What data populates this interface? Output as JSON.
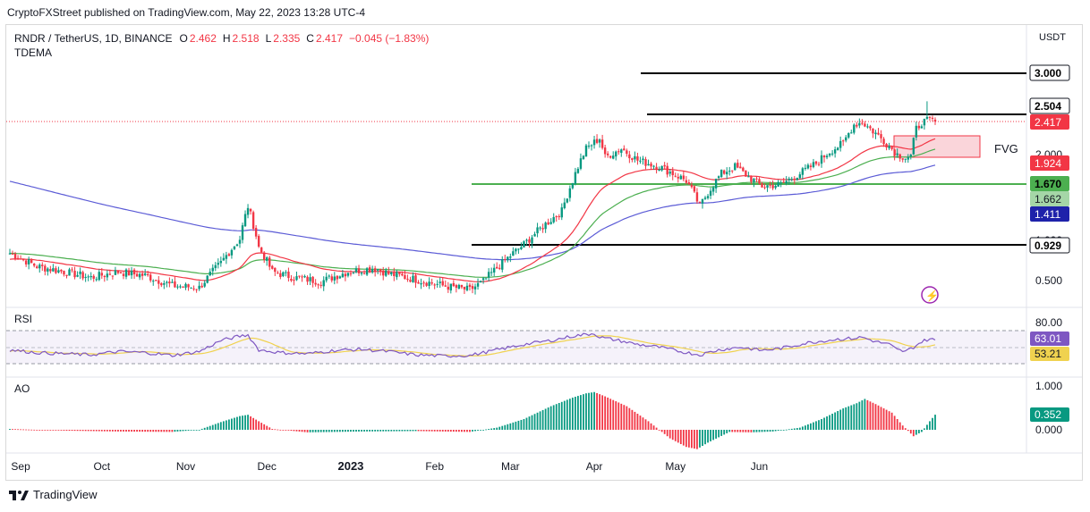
{
  "header": {
    "published": "CryptoFXStreet published on TradingView.com, May 22, 2023 13:28 UTC-4"
  },
  "legend": {
    "symbol": "RNDR / TetherUS, 1D, BINANCE",
    "o_label": "O",
    "o": "2.462",
    "h_label": "H",
    "h": "2.518",
    "l_label": "L",
    "l": "2.335",
    "c_label": "C",
    "c": "2.417",
    "change": "−0.045 (−1.83%)",
    "indicator": "TDEMA"
  },
  "panes": {
    "rsi": "RSI",
    "ao": "AO"
  },
  "footer": {
    "brand": "TradingView"
  },
  "colors": {
    "up": "#089981",
    "down": "#f23645",
    "ema_fast": "#f23645",
    "ema_mid": "#4caf50",
    "ema_slow": "#5b5bd6",
    "rsi": "#7e57c2",
    "rsi_ma": "#f0d24f",
    "green_level": "#4caf50",
    "fvg": "#f8c7cd"
  },
  "chart_data": {
    "type": "candlestick",
    "symbol": "RNDR / TetherUS",
    "interval": "1D",
    "exchange": "BINANCE",
    "y_axis_unit": "USDT",
    "y_axis_ticks": [
      "0.500",
      "1.000",
      "2.000"
    ],
    "x_tick_labels": [
      "Sep",
      "Oct",
      "Nov",
      "Dec",
      "2023",
      "Feb",
      "Mar",
      "Apr",
      "May",
      "Jun"
    ],
    "price_path": [
      [
        0,
        0.66
      ],
      [
        10,
        0.58
      ],
      [
        20,
        0.55
      ],
      [
        30,
        0.52
      ],
      [
        40,
        0.55
      ],
      [
        50,
        0.53
      ],
      [
        60,
        0.48
      ],
      [
        70,
        0.47
      ],
      [
        78,
        0.6
      ],
      [
        85,
        0.76
      ],
      [
        88,
        1.05
      ],
      [
        92,
        0.7
      ],
      [
        97,
        0.55
      ],
      [
        105,
        0.52
      ],
      [
        115,
        0.5
      ],
      [
        125,
        0.55
      ],
      [
        135,
        0.57
      ],
      [
        140,
        0.54
      ],
      [
        150,
        0.51
      ],
      [
        160,
        0.48
      ],
      [
        170,
        0.46
      ],
      [
        175,
        0.5
      ],
      [
        182,
        0.6
      ],
      [
        190,
        0.72
      ],
      [
        198,
        0.88
      ],
      [
        204,
        1.0
      ],
      [
        208,
        1.35
      ],
      [
        213,
        1.85
      ],
      [
        218,
        2.05
      ],
      [
        220,
        1.7
      ],
      [
        226,
        1.85
      ],
      [
        232,
        1.65
      ],
      [
        240,
        1.55
      ],
      [
        250,
        1.35
      ],
      [
        255,
        1.05
      ],
      [
        258,
        1.2
      ],
      [
        263,
        1.45
      ],
      [
        268,
        1.55
      ],
      [
        273,
        1.4
      ],
      [
        278,
        1.28
      ],
      [
        285,
        1.3
      ],
      [
        292,
        1.45
      ],
      [
        298,
        1.6
      ],
      [
        303,
        1.8
      ],
      [
        308,
        1.95
      ],
      [
        312,
        2.35
      ],
      [
        315,
        2.4
      ],
      [
        320,
        2.15
      ],
      [
        325,
        1.9
      ],
      [
        328,
        1.75
      ],
      [
        331,
        1.7
      ],
      [
        333,
        1.72
      ],
      [
        335,
        2.25
      ],
      [
        337,
        2.4
      ],
      [
        340,
        2.45
      ],
      [
        342,
        2.417
      ]
    ],
    "current": {
      "open": 2.462,
      "high": 2.518,
      "low": 2.335,
      "close": 2.417,
      "change": -0.045,
      "change_pct": -1.83
    },
    "moving_averages": [
      {
        "color": "red",
        "last_value": 1.924
      },
      {
        "color": "green",
        "last_value": 1.662
      },
      {
        "color": "blue",
        "last_value": 1.411
      }
    ],
    "levels": [
      {
        "label": "3.000",
        "color": "black"
      },
      {
        "label": "2.504",
        "color": "black"
      },
      {
        "label": "1.670",
        "color": "green"
      },
      {
        "label": "0.929",
        "color": "black"
      }
    ],
    "last_price_label": "2.417",
    "fvg_zone": {
      "label": "FVG",
      "from": 1.95,
      "to": 2.2
    },
    "rsi": {
      "scale_labels": [
        "80.00"
      ],
      "last_value": "63.01",
      "ma_value": "53.21",
      "path": [
        [
          0,
          45
        ],
        [
          10,
          40
        ],
        [
          20,
          38
        ],
        [
          30,
          36
        ],
        [
          40,
          42
        ],
        [
          50,
          40
        ],
        [
          60,
          35
        ],
        [
          70,
          42
        ],
        [
          78,
          62
        ],
        [
          85,
          70
        ],
        [
          88,
          72
        ],
        [
          92,
          45
        ],
        [
          100,
          40
        ],
        [
          110,
          38
        ],
        [
          120,
          44
        ],
        [
          130,
          46
        ],
        [
          140,
          42
        ],
        [
          150,
          36
        ],
        [
          160,
          34
        ],
        [
          170,
          35
        ],
        [
          180,
          45
        ],
        [
          190,
          55
        ],
        [
          200,
          62
        ],
        [
          208,
          70
        ],
        [
          213,
          73
        ],
        [
          216,
          75
        ],
        [
          218,
          68
        ],
        [
          225,
          62
        ],
        [
          232,
          55
        ],
        [
          240,
          50
        ],
        [
          248,
          42
        ],
        [
          255,
          36
        ],
        [
          262,
          45
        ],
        [
          270,
          50
        ],
        [
          278,
          44
        ],
        [
          285,
          48
        ],
        [
          295,
          58
        ],
        [
          305,
          64
        ],
        [
          312,
          66
        ],
        [
          315,
          68
        ],
        [
          320,
          60
        ],
        [
          325,
          55
        ],
        [
          328,
          45
        ],
        [
          331,
          42
        ],
        [
          334,
          50
        ],
        [
          337,
          60
        ],
        [
          340,
          65
        ],
        [
          342,
          63
        ]
      ]
    },
    "ao": {
      "scale_labels": [
        "1.000",
        "0.000"
      ],
      "last_value": "0.352",
      "path": [
        [
          0,
          0.02
        ],
        [
          20,
          -0.02
        ],
        [
          40,
          -0.04
        ],
        [
          60,
          -0.05
        ],
        [
          70,
          0.0
        ],
        [
          78,
          0.18
        ],
        [
          85,
          0.32
        ],
        [
          88,
          0.35
        ],
        [
          92,
          0.2
        ],
        [
          97,
          0.02
        ],
        [
          110,
          -0.06
        ],
        [
          130,
          -0.04
        ],
        [
          150,
          -0.03
        ],
        [
          170,
          -0.05
        ],
        [
          180,
          0.05
        ],
        [
          190,
          0.25
        ],
        [
          200,
          0.55
        ],
        [
          208,
          0.75
        ],
        [
          213,
          0.85
        ],
        [
          216,
          0.88
        ],
        [
          220,
          0.78
        ],
        [
          228,
          0.55
        ],
        [
          236,
          0.2
        ],
        [
          244,
          -0.2
        ],
        [
          250,
          -0.4
        ],
        [
          254,
          -0.45
        ],
        [
          258,
          -0.3
        ],
        [
          266,
          -0.05
        ],
        [
          274,
          -0.06
        ],
        [
          282,
          -0.04
        ],
        [
          292,
          0.05
        ],
        [
          300,
          0.25
        ],
        [
          308,
          0.5
        ],
        [
          313,
          0.62
        ],
        [
          316,
          0.72
        ],
        [
          320,
          0.6
        ],
        [
          326,
          0.4
        ],
        [
          330,
          0.1
        ],
        [
          334,
          -0.15
        ],
        [
          337,
          -0.05
        ],
        [
          340,
          0.2
        ],
        [
          342,
          0.352
        ]
      ]
    }
  }
}
